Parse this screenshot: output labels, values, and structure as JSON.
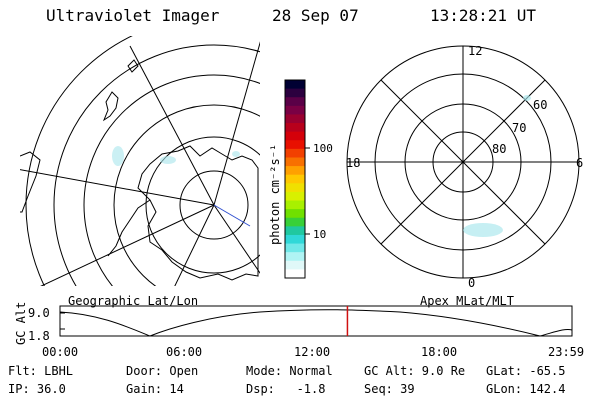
{
  "header": {
    "instrument": "Ultraviolet Imager",
    "date": "28 Sep 07",
    "time": "13:28:21 UT"
  },
  "geo_panel": {
    "label": "Geographic Lat/Lon"
  },
  "polar_panel": {
    "label": "Apex MLat/MLT",
    "mlt_labels": {
      "top": "12",
      "left": "18",
      "right": "6",
      "bottom": "0"
    },
    "mlat_labels": [
      "60",
      "70",
      "80"
    ]
  },
  "colorbar": {
    "unit_label": "photon cm⁻²s⁻¹",
    "tick_high": "100",
    "tick_low": "10",
    "colors": [
      "#000033",
      "#2b003f",
      "#5a0047",
      "#7a0044",
      "#9a0030",
      "#b8001c",
      "#d4000a",
      "#e81000",
      "#f24000",
      "#f87000",
      "#ffa000",
      "#ffc800",
      "#f0e000",
      "#d8f000",
      "#a8f000",
      "#70e000",
      "#38d038",
      "#20c8a0",
      "#30d8d8",
      "#70e8e8",
      "#b0f4f4",
      "#e0f8f8",
      "#ffffff"
    ]
  },
  "timeline": {
    "y_axis_label": "GC Alt",
    "y_ticks": [
      "9.0",
      "1.8"
    ],
    "x_ticks": [
      "00:00",
      "06:00",
      "12:00",
      "18:00",
      "23:59"
    ],
    "current_time_fraction": 0.5614
  },
  "footer": {
    "row1": {
      "filter": "Flt: LBHL",
      "door": "Door: Open",
      "mode": "Mode: Normal",
      "gc_alt": "GC Alt: 9.0 Re",
      "glat": "GLat: -65.5"
    },
    "row2": {
      "ip": "IP: 36.0",
      "gain": "Gain: 14",
      "dsp": "Dsp:   -1.8",
      "seq": "Seq: 39",
      "glon": "GLon: 142.4"
    }
  }
}
